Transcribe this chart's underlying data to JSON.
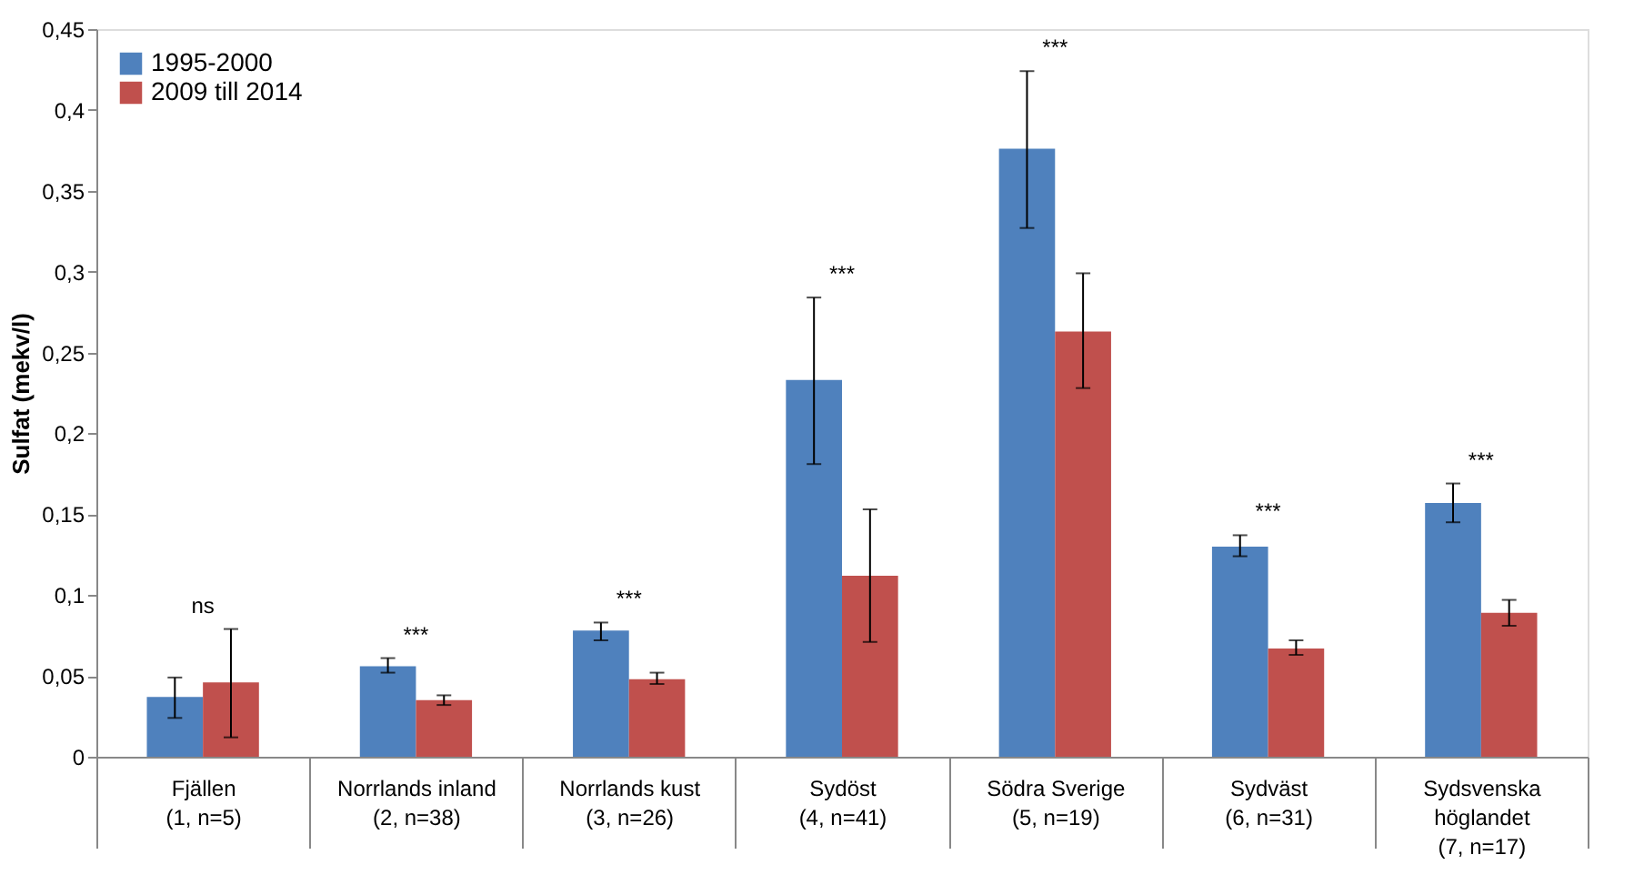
{
  "chart_data": {
    "type": "bar",
    "ylabel": "Sulfat (mekv/l)",
    "categories": [
      "Fjällen\n\n(1, n=5)",
      "Norrlands inland\n\n(2, n=38)",
      "Norrlands kust\n\n(3, n=26)",
      "Sydöst\n\n(4, n=41)",
      "Södra Sverige\n\n(5, n=19)",
      "Sydväst\n\n(6, n=31)",
      "Sydsvenska\nhöglandet\n(7, n=17)"
    ],
    "series": [
      {
        "name": "1995-2000",
        "color": "#4f81bd",
        "values": [
          0.037,
          0.056,
          0.078,
          0.233,
          0.376,
          0.13,
          0.157
        ],
        "errors": [
          [
            0.024,
            0.049
          ],
          [
            0.052,
            0.061
          ],
          [
            0.072,
            0.083
          ],
          [
            0.181,
            0.284
          ],
          [
            0.327,
            0.424
          ],
          [
            0.124,
            0.137
          ],
          [
            0.145,
            0.169
          ]
        ]
      },
      {
        "name": "2009 till 2014",
        "color": "#c0504d",
        "values": [
          0.046,
          0.035,
          0.048,
          0.112,
          0.263,
          0.067,
          0.089
        ],
        "errors": [
          [
            0.012,
            0.079
          ],
          [
            0.032,
            0.038
          ],
          [
            0.045,
            0.052
          ],
          [
            0.071,
            0.153
          ],
          [
            0.228,
            0.299
          ],
          [
            0.063,
            0.072
          ],
          [
            0.081,
            0.097
          ]
        ]
      }
    ],
    "ylim": [
      0,
      0.45
    ],
    "yticks": [
      0,
      {
        "value": 0.05,
        "label": "0,05"
      },
      {
        "value": 0.1,
        "label": "0,1"
      },
      {
        "value": 0.15,
        "label": "0,15"
      },
      {
        "value": 0.2,
        "label": "0,2"
      },
      {
        "value": 0.25,
        "label": "0,25"
      },
      {
        "value": 0.3,
        "label": "0,3"
      },
      {
        "value": 0.35,
        "label": "0,35"
      },
      {
        "value": 0.4,
        "label": "0,4"
      },
      {
        "value": 0.45,
        "label": "0,45"
      }
    ],
    "annotations": [
      "ns",
      "***",
      "***",
      "***",
      "***",
      "***",
      "***"
    ],
    "legend": "top left",
    "grid": false
  }
}
